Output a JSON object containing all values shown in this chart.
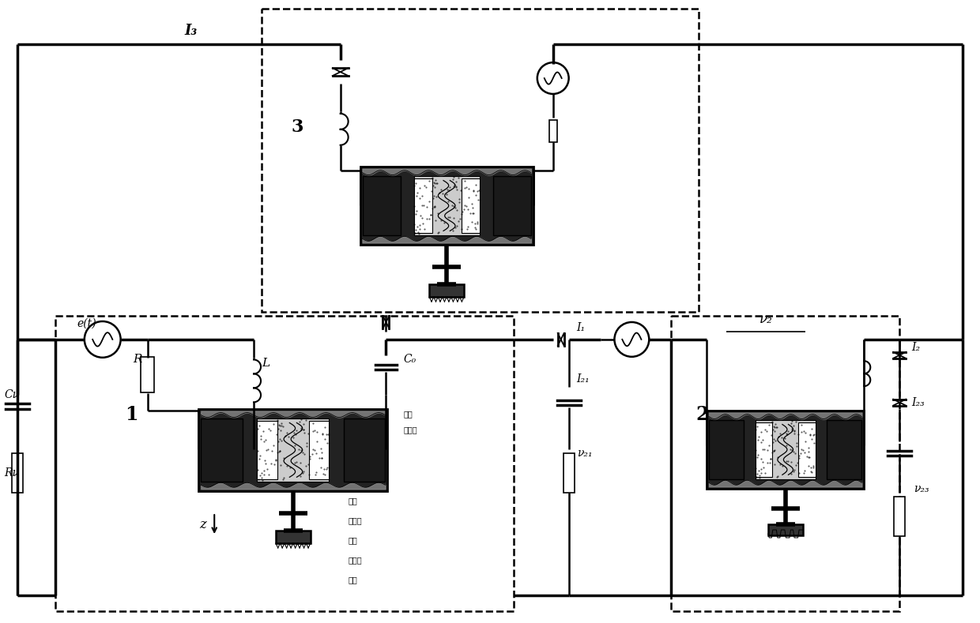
{
  "fig_width": 12.4,
  "fig_height": 7.89,
  "dpi": 100,
  "bg": "#ffffff",
  "labels": {
    "I3": "I₃",
    "v2": "ν₂",
    "I2": "I₂",
    "I23": "I₂₃",
    "v23": "ν₂₃",
    "et": "e(t)",
    "R": "R",
    "L": "L",
    "C0": "C₀",
    "I1": "I₁",
    "I21": "I₂₁",
    "v21": "ν₂₁",
    "Cv": "Cν",
    "Rv": "Rν",
    "z": "z",
    "n1": "1",
    "n2": "2",
    "n3": "3"
  },
  "cn": {
    "shying": "石英",
    "zhendongti": "振动体",
    "dandong": "弹簧",
    "zhiliang": "质量块",
    "dandong2": "弹簧",
    "zhixingqi": "执行器",
    "zhicheng": "支撞"
  }
}
